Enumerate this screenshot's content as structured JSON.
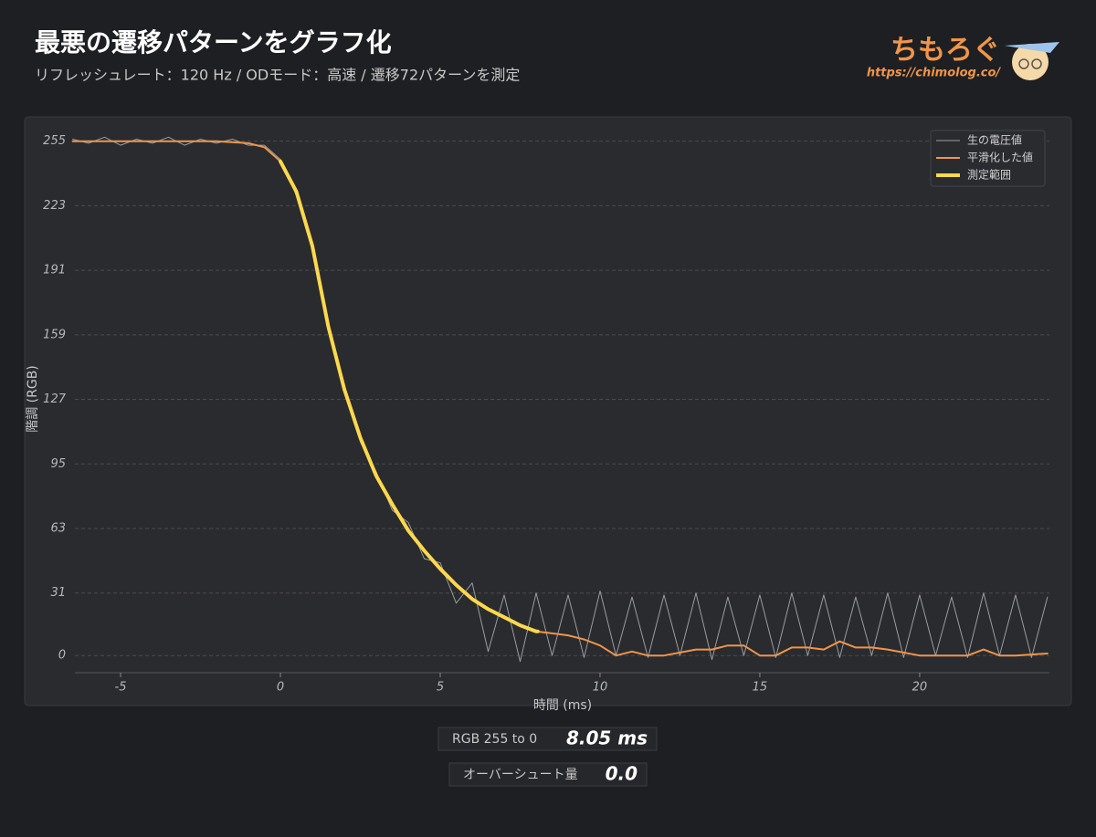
{
  "chart_data": {
    "type": "line",
    "title": "最悪の遷移パターンをグラフ化",
    "subtitle": "リフレッシュレート：120 Hz / ODモード：高速 / 遷移72パターンを測定",
    "brand": "ちもろぐ",
    "brand_url": "https://chimolog.co/",
    "x_label": "時間 (ms)",
    "y_label": "階調 (RGB)",
    "xlim": [
      -6.43,
      24.06
    ],
    "ylim": [
      -8.5,
      263
    ],
    "xticks": [
      -5,
      0,
      5,
      10,
      15,
      20
    ],
    "yticks": [
      0,
      31,
      63,
      95,
      127,
      159,
      191,
      223,
      255
    ],
    "grid": true,
    "legend": "upper right",
    "series": [
      {
        "name": "生の電圧値",
        "color": "#9a9ca0",
        "width": 1,
        "x": [
          -6.5,
          -6,
          -5.5,
          -5,
          -4.5,
          -4,
          -3.5,
          -3,
          -2.5,
          -2,
          -1.5,
          -1,
          -0.5,
          0,
          0.5,
          1,
          1.5,
          2,
          2.5,
          3,
          3.5,
          4,
          4.5,
          5,
          5.5,
          6,
          6.5,
          7,
          7.5,
          8,
          8.5,
          9,
          9.5,
          10,
          10.5,
          11,
          11.5,
          12,
          12.5,
          13,
          13.5,
          14,
          14.5,
          15,
          15.5,
          16,
          16.5,
          17,
          17.5,
          18,
          18.5,
          19,
          19.5,
          20,
          20.5,
          21,
          21.5,
          22,
          22.5,
          23,
          23.5,
          24
        ],
        "values": [
          256,
          254,
          257,
          253,
          256,
          254,
          257,
          253,
          256,
          254,
          256,
          253,
          253,
          246,
          228,
          205,
          161,
          134,
          106,
          91,
          72,
          66,
          48,
          46,
          26,
          36,
          2,
          30,
          -3,
          31,
          0,
          30,
          -1,
          32,
          0,
          29,
          -1,
          30,
          0,
          31,
          -2,
          29,
          0,
          30,
          -1,
          31,
          0,
          30,
          -1,
          29,
          0,
          31,
          -1,
          30,
          0,
          29,
          -1,
          31,
          0,
          30,
          -1,
          29
        ]
      },
      {
        "name": "平滑化した値",
        "color": "#f0954a",
        "width": 2,
        "x": [
          -6.5,
          -4,
          -2,
          -1,
          -0.5,
          0,
          0.5,
          1,
          1.5,
          2,
          2.5,
          3,
          3.5,
          4,
          4.5,
          5,
          5.5,
          6,
          6.5,
          7,
          7.5,
          8,
          8.5,
          9,
          9.5,
          10,
          10.5,
          11,
          11.5,
          12,
          13,
          13.5,
          14,
          14.5,
          15,
          15.5,
          16,
          16.5,
          17,
          17.5,
          18,
          18.5,
          19,
          20,
          21,
          21.5,
          22,
          22.5,
          23,
          24
        ],
        "values": [
          255,
          255,
          255,
          254,
          252,
          245,
          230,
          203,
          163,
          132,
          108,
          89,
          75,
          62,
          52,
          43,
          35,
          28,
          23,
          19,
          15,
          12,
          11,
          10,
          8,
          5,
          0,
          2,
          0,
          0,
          3,
          3,
          5,
          5,
          0,
          0,
          4,
          4,
          3,
          7,
          4,
          4,
          3,
          0,
          0,
          0,
          3,
          0,
          0,
          1
        ]
      },
      {
        "name": "測定範囲",
        "color": "#ffd84d",
        "width": 4,
        "x": [
          0,
          0.5,
          1,
          1.5,
          2,
          2.5,
          3,
          3.5,
          4,
          4.5,
          5,
          5.5,
          6,
          6.5,
          7,
          7.5,
          8,
          8.05
        ],
        "values": [
          245,
          230,
          203,
          163,
          132,
          108,
          89,
          75,
          62,
          52,
          43,
          35,
          28,
          23,
          19,
          15,
          12,
          12
        ]
      }
    ],
    "results": [
      {
        "label": "RGB 255 to 0",
        "value": "8.05 ms"
      },
      {
        "label": "オーバーシュート量",
        "value": "0.0"
      }
    ]
  }
}
